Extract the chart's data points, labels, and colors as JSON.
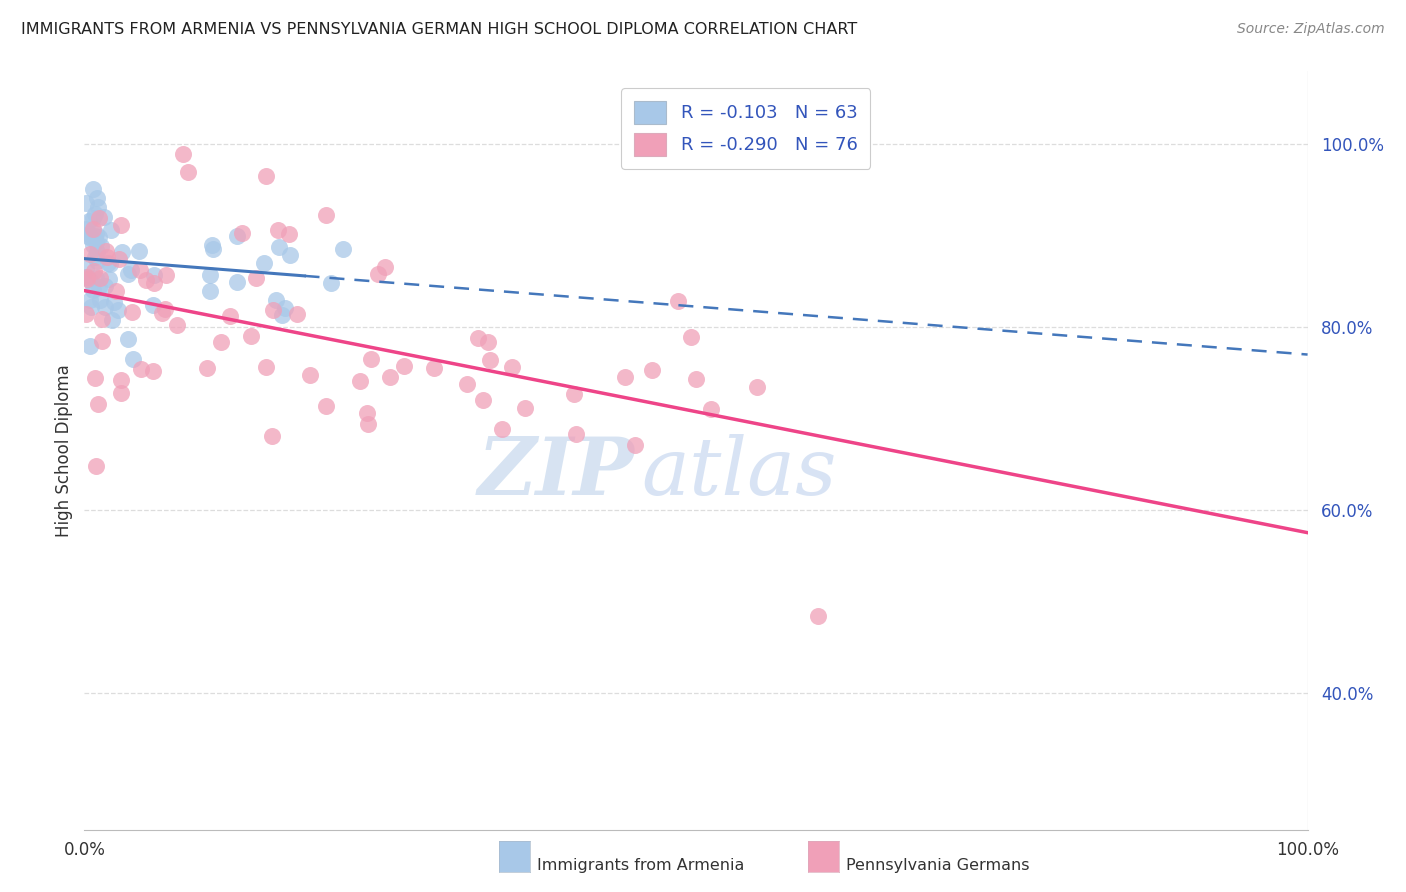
{
  "title": "IMMIGRANTS FROM ARMENIA VS PENNSYLVANIA GERMAN HIGH SCHOOL DIPLOMA CORRELATION CHART",
  "source": "Source: ZipAtlas.com",
  "ylabel": "High School Diploma",
  "legend_label1": "Immigrants from Armenia",
  "legend_label2": "Pennsylvania Germans",
  "legend_r1": "R = -0.103",
  "legend_n1": "N = 63",
  "legend_r2": "R = -0.290",
  "legend_n2": "N = 76",
  "watermark_zip": "ZIP",
  "watermark_atlas": "atlas",
  "color_blue": "#a8c8e8",
  "color_pink": "#f0a0b8",
  "color_blue_line": "#4477bb",
  "color_pink_line": "#ee4488",
  "color_blue_text": "#3355bb",
  "color_grid": "#dddddd",
  "xlim": [
    0.0,
    1.0
  ],
  "ylim": [
    0.25,
    1.08
  ],
  "ytick_vals": [
    1.0,
    0.8,
    0.6,
    0.4
  ],
  "ytick_labels": [
    "100.0%",
    "80.0%",
    "60.0%",
    "40.0%"
  ],
  "blue_line_y0": 0.875,
  "blue_line_y1": 0.77,
  "blue_line_solid_end": 0.18,
  "pink_line_y0": 0.84,
  "pink_line_y1": 0.575
}
